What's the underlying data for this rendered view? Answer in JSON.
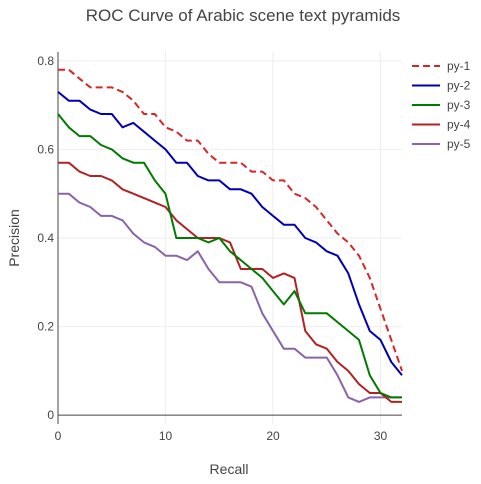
{
  "chart_data": {
    "type": "line",
    "title": "ROC Curve of Arabic scene text pyramids",
    "xlabel": "Recall",
    "ylabel": "Precision",
    "xlim": [
      0,
      32
    ],
    "ylim": [
      -0.02,
      0.82
    ],
    "xticks": [
      0,
      10,
      20,
      30
    ],
    "yticks": [
      0,
      0.2,
      0.4,
      0.6,
      0.8
    ],
    "grid": true,
    "legend_position": "top-right",
    "x": [
      0,
      1,
      2,
      3,
      4,
      5,
      6,
      7,
      8,
      9,
      10,
      11,
      12,
      13,
      14,
      15,
      16,
      17,
      18,
      19,
      20,
      21,
      22,
      23,
      24,
      25,
      26,
      27,
      28,
      29,
      30,
      31,
      32
    ],
    "series": [
      {
        "name": "py-1",
        "color": "#d62728",
        "dash": true,
        "values": [
          0.78,
          0.78,
          0.76,
          0.74,
          0.74,
          0.74,
          0.73,
          0.71,
          0.68,
          0.68,
          0.65,
          0.64,
          0.62,
          0.62,
          0.59,
          0.57,
          0.57,
          0.57,
          0.55,
          0.55,
          0.53,
          0.53,
          0.5,
          0.49,
          0.47,
          0.44,
          0.41,
          0.39,
          0.36,
          0.31,
          0.24,
          0.17,
          0.1
        ]
      },
      {
        "name": "py-2",
        "color": "#0000b3",
        "dash": false,
        "values": [
          0.73,
          0.71,
          0.71,
          0.69,
          0.68,
          0.68,
          0.65,
          0.66,
          0.64,
          0.62,
          0.6,
          0.57,
          0.57,
          0.54,
          0.53,
          0.53,
          0.51,
          0.51,
          0.5,
          0.47,
          0.45,
          0.43,
          0.43,
          0.4,
          0.39,
          0.37,
          0.36,
          0.32,
          0.25,
          0.19,
          0.17,
          0.12,
          0.09
        ]
      },
      {
        "name": "py-3",
        "color": "#007a00",
        "dash": false,
        "values": [
          0.68,
          0.65,
          0.63,
          0.63,
          0.61,
          0.6,
          0.58,
          0.57,
          0.57,
          0.53,
          0.5,
          0.4,
          0.4,
          0.4,
          0.39,
          0.4,
          0.37,
          0.35,
          0.33,
          0.31,
          0.28,
          0.25,
          0.28,
          0.23,
          0.23,
          0.23,
          0.21,
          0.19,
          0.17,
          0.09,
          0.05,
          0.04,
          0.04
        ]
      },
      {
        "name": "py-4",
        "color": "#b22222",
        "dash": false,
        "values": [
          0.57,
          0.57,
          0.55,
          0.54,
          0.54,
          0.53,
          0.51,
          0.5,
          0.49,
          0.48,
          0.47,
          0.44,
          0.42,
          0.4,
          0.4,
          0.4,
          0.39,
          0.33,
          0.33,
          0.33,
          0.31,
          0.32,
          0.31,
          0.19,
          0.16,
          0.15,
          0.12,
          0.1,
          0.07,
          0.05,
          0.05,
          0.03,
          0.03
        ]
      },
      {
        "name": "py-5",
        "color": "#8a63a8",
        "dash": false,
        "values": [
          0.5,
          0.5,
          0.48,
          0.47,
          0.45,
          0.45,
          0.44,
          0.41,
          0.39,
          0.38,
          0.36,
          0.36,
          0.35,
          0.37,
          0.33,
          0.3,
          0.3,
          0.3,
          0.29,
          0.23,
          0.19,
          0.15,
          0.15,
          0.13,
          0.13,
          0.13,
          0.09,
          0.04,
          0.03,
          0.04,
          0.04,
          0.04,
          0.04
        ]
      }
    ]
  }
}
